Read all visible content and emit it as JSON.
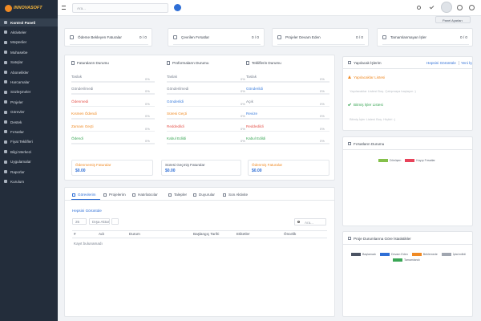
{
  "sidebar": {
    "brand": "INNOVASOFT",
    "menu": [
      "Kontrol Paneli",
      "Aktiviteler",
      "Müşteriler",
      "Muhasebe",
      "Satışlar",
      "Abonelikler",
      "Harcamalar",
      "Sözleşmeler",
      "Projeler",
      "Görevler",
      "Destek",
      "Fırsatlar",
      "Fiyat Teklifleri",
      "Bilgi Merkezi",
      "Uygulamalar",
      "Raporlar",
      "Kurulum"
    ]
  },
  "topbar": {
    "search_placeholder": "Ara...",
    "panel_settings": "Panel Ayarları"
  },
  "stat_cards": [
    {
      "title": "Ödeme Bekleyen Faturalar",
      "value": "0 / 0"
    },
    {
      "title": "Çevrilen Fırsatlar",
      "value": "0 / 0"
    },
    {
      "title": "Projeler Devam Eden",
      "value": "0 / 0"
    },
    {
      "title": "Tamamlanmayan İşler",
      "value": "0 / 0"
    }
  ],
  "status_panels": [
    {
      "title": "Faturaların Durumu",
      "rows": [
        {
          "label": "Taslak",
          "percent": "0%",
          "color": "#7a8290"
        },
        {
          "label": "Gönderilmedi",
          "percent": "0%",
          "color": "#7a8290"
        },
        {
          "label": "Ödenmedi",
          "percent": "0%",
          "color": "#e5534b"
        },
        {
          "label": "Kısmen Ödendi",
          "percent": "0%",
          "color": "#f08a24"
        },
        {
          "label": "Zamanı Geçti",
          "percent": "0%",
          "color": "#f08a24"
        },
        {
          "label": "Ödendi",
          "percent": "0%",
          "color": "#3aa655"
        }
      ]
    },
    {
      "title": "Proformaların Durumu",
      "rows": [
        {
          "label": "Taslak",
          "percent": "0%",
          "color": "#7a8290"
        },
        {
          "label": "Gönderilmedi",
          "percent": "0%",
          "color": "#7a8290"
        },
        {
          "label": "Gönderildi",
          "percent": "0%",
          "color": "#3b7ddd"
        },
        {
          "label": "Süresi Geçti",
          "percent": "0%",
          "color": "#f08a24"
        },
        {
          "label": "Reddedildi",
          "percent": "0%",
          "color": "#e5534b"
        },
        {
          "label": "Kabul Edildi",
          "percent": "0%",
          "color": "#3aa655"
        }
      ]
    },
    {
      "title": "Tekliflerin Durumu",
      "rows": [
        {
          "label": "Taslak",
          "percent": "0%",
          "color": "#7a8290"
        },
        {
          "label": "Gönderildi",
          "percent": "0%",
          "color": "#3b7ddd"
        },
        {
          "label": "Açık",
          "percent": "0%",
          "color": "#7a8290"
        },
        {
          "label": "Revize",
          "percent": "0%",
          "color": "#3b7ddd"
        },
        {
          "label": "Reddedildi",
          "percent": "0%",
          "color": "#e5534b"
        },
        {
          "label": "Kabul Edildi",
          "percent": "0%",
          "color": "#3aa655"
        }
      ]
    }
  ],
  "totals": [
    {
      "label": "Ödenmemiş Faturalar",
      "amount": "$0.00"
    },
    {
      "label": "Süresi Geçmiş Faturalar",
      "amount": "$0.00"
    },
    {
      "label": "Ödenmiş Faturalar",
      "amount": "$0.00"
    }
  ],
  "tasks_panel": {
    "tabs": [
      "Görevlerim",
      "Projelerim",
      "Hatırlatıcılar",
      "Talepler",
      "Duyurular",
      "Son Aktivite"
    ],
    "view_all": "Hepsini Görüntüle",
    "page_size": "25",
    "export": "Dışa Aktar",
    "search_placeholder": "Ara...",
    "columns": [
      "#",
      "Adı",
      "Durum",
      "Başlangıç Tarihi",
      "Etiketler",
      "Öncelik"
    ],
    "empty": "Kayıt bulunamadı"
  },
  "todo": {
    "title": "Yapılacak İşlerim",
    "view_all": "Hepsini Görüntüle",
    "new": "Yeni İş",
    "pending_title": "Yapılacaklar Listesi",
    "pending_empty": "Yapılacaklar Listesi Boş. Çalışmaya başlayın :)",
    "done_title": "Bitmiş İşler Listesi",
    "done_empty": "Bitmiş İşler Listesi Boş. Hiçbiri :("
  },
  "opportunities": {
    "title": "Fırsatların Durumu",
    "legend": [
      {
        "label": "Dönüşen",
        "color": "#84c04a"
      },
      {
        "label": "Kayıp Fırsatlar",
        "color": "#e8435a"
      }
    ]
  },
  "project_stats": {
    "title": "Proje Durumlarına Göre İstatistikler",
    "legend": [
      {
        "label": "Başlamadı",
        "color": "#4b5363"
      },
      {
        "label": "Devam Eden",
        "color": "#2f6fd6"
      },
      {
        "label": "Beklemede",
        "color": "#f08a24"
      },
      {
        "label": "İptal edildi",
        "color": "#a0a6b0"
      },
      {
        "label": "Tamamlandı",
        "color": "#3aa655"
      }
    ]
  }
}
